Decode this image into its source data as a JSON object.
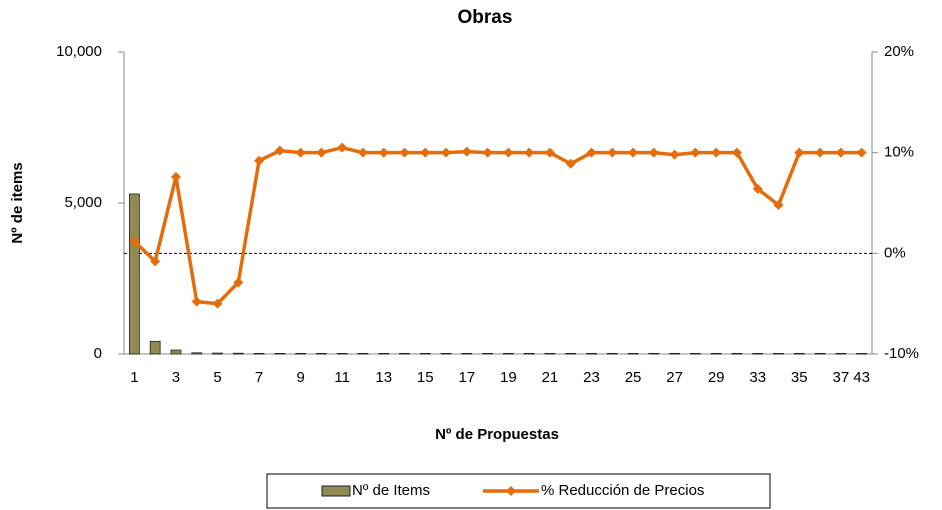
{
  "chart_data": {
    "type": "bar_line",
    "title": "Obras",
    "x_label": "Nº de Propuestas",
    "y_label": "Nº de items",
    "categories": [
      "1",
      null,
      "3",
      null,
      "5",
      null,
      "7",
      null,
      "9",
      null,
      "11",
      null,
      "13",
      null,
      "15",
      null,
      "17",
      null,
      "19",
      null,
      "21",
      null,
      "23",
      null,
      "25",
      null,
      "27",
      null,
      "29",
      null,
      "33",
      null,
      "35",
      null,
      "37",
      "43"
    ],
    "series": [
      {
        "name": "Nº de Items",
        "type": "bar",
        "color": "#938953",
        "values": [
          5300,
          420,
          130,
          40,
          30,
          25,
          20,
          20,
          20,
          20,
          20,
          20,
          20,
          20,
          20,
          20,
          20,
          20,
          20,
          20,
          20,
          20,
          20,
          20,
          20,
          20,
          20,
          20,
          20,
          20,
          20,
          20,
          20,
          20,
          20,
          20
        ]
      },
      {
        "name": "% Reducción de Precios",
        "type": "line",
        "axis": "y2",
        "color": "#e46c0a",
        "values": [
          1.2,
          -0.8,
          7.6,
          -4.8,
          -5,
          -2.9,
          9.2,
          10.2,
          10,
          10,
          10.5,
          10,
          10,
          10,
          10,
          10,
          10.1,
          10,
          10,
          10,
          10,
          8.9,
          10,
          10,
          10,
          10,
          9.8,
          10,
          10,
          10,
          6.4,
          4.8,
          10,
          10,
          10,
          10
        ]
      }
    ],
    "ylim": [
      0,
      10000
    ],
    "yticks": [
      0,
      {
        "value": 5000,
        "label": "5,000"
      },
      {
        "value": 10000,
        "label": "10,000"
      }
    ],
    "y2lim": [
      -10,
      20
    ],
    "y2ticks": [
      {
        "value": -10,
        "label": "-10%"
      },
      {
        "value": 0,
        "label": "0%"
      },
      {
        "value": 10,
        "label": "10%"
      },
      {
        "value": 20,
        "label": "20%"
      }
    ],
    "y2_reference_line": 0,
    "grid": false,
    "legend": "bottom"
  }
}
